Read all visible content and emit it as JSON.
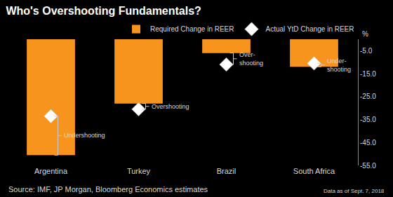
{
  "chart_data": {
    "type": "bar",
    "title": "Who's Overshooting Fundamentals?",
    "ylabel": "%",
    "categories": [
      "Argentina",
      "Turkey",
      "Brazil",
      "South Africa"
    ],
    "series": [
      {
        "name": "Required Change in REER",
        "type": "bar",
        "color": "#f7941d",
        "values": [
          -50.5,
          -28,
          -6,
          -12
        ]
      },
      {
        "name": "Actual YtD Change in REER",
        "type": "scatter",
        "marker": "diamond",
        "color": "#ffffff",
        "values": [
          -33.5,
          -30.5,
          -11,
          -10.5
        ]
      }
    ],
    "ylim": [
      -55,
      0
    ],
    "yticks": [
      {
        "value": -5,
        "label": "-5.0"
      },
      {
        "value": -15,
        "label": "-15.0"
      },
      {
        "value": -25,
        "label": "-25.0"
      },
      {
        "value": -35,
        "label": "-35.0"
      },
      {
        "value": -45,
        "label": "-45.0"
      },
      {
        "value": -55,
        "label": "-55.0"
      }
    ],
    "grid": false,
    "legend": "top right",
    "annotations": [
      {
        "category": "Argentina",
        "text": "Undershooting"
      },
      {
        "category": "Turkey",
        "text": "Overshooting"
      },
      {
        "category": "Brazil",
        "text": "Over-\nshooting"
      },
      {
        "category": "South Africa",
        "text": "Under-\nshooting"
      }
    ],
    "source": "Source: IMF, JP Morgan, Bloomberg Economics estimates",
    "note": "Data as of Sept. 7, 2018"
  }
}
